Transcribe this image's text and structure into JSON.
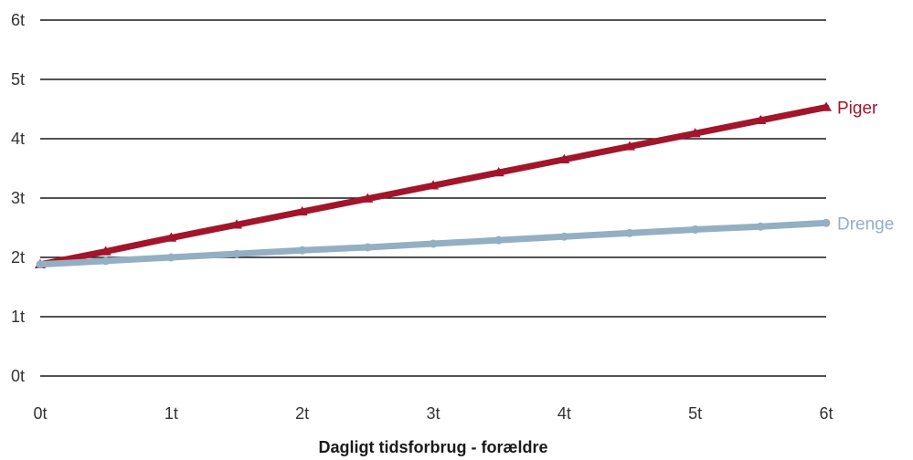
{
  "chart_data": {
    "type": "line",
    "title": "",
    "xlabel": "Dagligt tidsforbrug - forældre",
    "ylabel": "",
    "x": [
      0,
      0.5,
      1,
      1.5,
      2,
      2.5,
      3,
      3.5,
      4,
      4.5,
      5,
      5.5,
      6
    ],
    "xlim": [
      0,
      6
    ],
    "ylim": [
      0,
      6
    ],
    "x_ticks": [
      {
        "value": 0,
        "label": "0t"
      },
      {
        "value": 1,
        "label": "1t"
      },
      {
        "value": 2,
        "label": "2t"
      },
      {
        "value": 3,
        "label": "3t"
      },
      {
        "value": 4,
        "label": "4t"
      },
      {
        "value": 5,
        "label": "5t"
      },
      {
        "value": 6,
        "label": "6t"
      }
    ],
    "y_ticks": [
      {
        "value": 0,
        "label": "0t"
      },
      {
        "value": 1,
        "label": "1t"
      },
      {
        "value": 2,
        "label": "2t"
      },
      {
        "value": 3,
        "label": "3t"
      },
      {
        "value": 4,
        "label": "4t"
      },
      {
        "value": 5,
        "label": "5t"
      },
      {
        "value": 6,
        "label": "6t"
      }
    ],
    "grid": "horizontal",
    "series": [
      {
        "name": "Piger",
        "color": "#a3152a",
        "marker": "triangle",
        "values": [
          1.88,
          2.1,
          2.33,
          2.55,
          2.77,
          2.99,
          3.21,
          3.43,
          3.65,
          3.87,
          4.09,
          4.31,
          4.53
        ]
      },
      {
        "name": "Drenge",
        "color": "#93afc3",
        "marker": "circle",
        "values": [
          1.88,
          1.94,
          2.0,
          2.06,
          2.12,
          2.17,
          2.23,
          2.29,
          2.35,
          2.41,
          2.47,
          2.52,
          2.58
        ]
      }
    ]
  }
}
